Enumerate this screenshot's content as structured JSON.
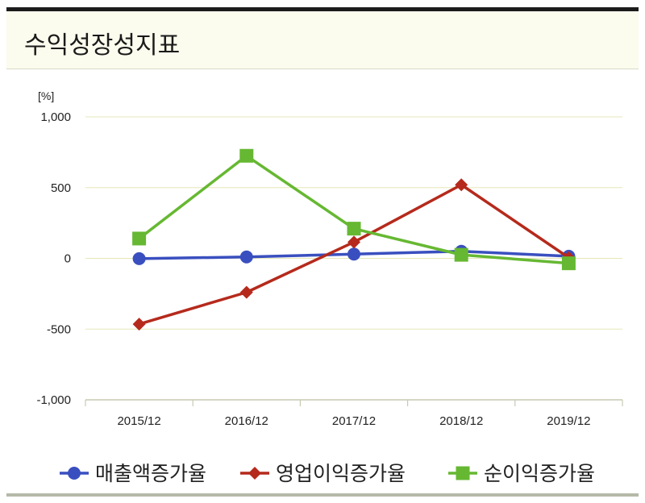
{
  "panel": {
    "title": "수익성장성지표"
  },
  "chart_data": {
    "type": "line",
    "unit_label": "[%]",
    "categories": [
      "2015/12",
      "2016/12",
      "2017/12",
      "2018/12",
      "2019/12"
    ],
    "ylim": [
      -1000,
      1000
    ],
    "yticks": [
      1000,
      500,
      0,
      -500,
      -1000
    ],
    "ytick_labels": [
      "1,000",
      "500",
      "0",
      "-500",
      "-1,000"
    ],
    "grid": true,
    "legend_position": "bottom",
    "series": [
      {
        "name": "매출액증가율",
        "values": [
          -2,
          10,
          30,
          50,
          15
        ],
        "color": "#3a4fbf",
        "marker": "circle"
      },
      {
        "name": "영업이익증가율",
        "values": [
          -465,
          -240,
          115,
          520,
          5
        ],
        "color": "#b52a1c",
        "marker": "diamond"
      },
      {
        "name": "순이익증가율",
        "values": [
          140,
          725,
          210,
          25,
          -35
        ],
        "color": "#66b832",
        "marker": "square"
      }
    ]
  }
}
